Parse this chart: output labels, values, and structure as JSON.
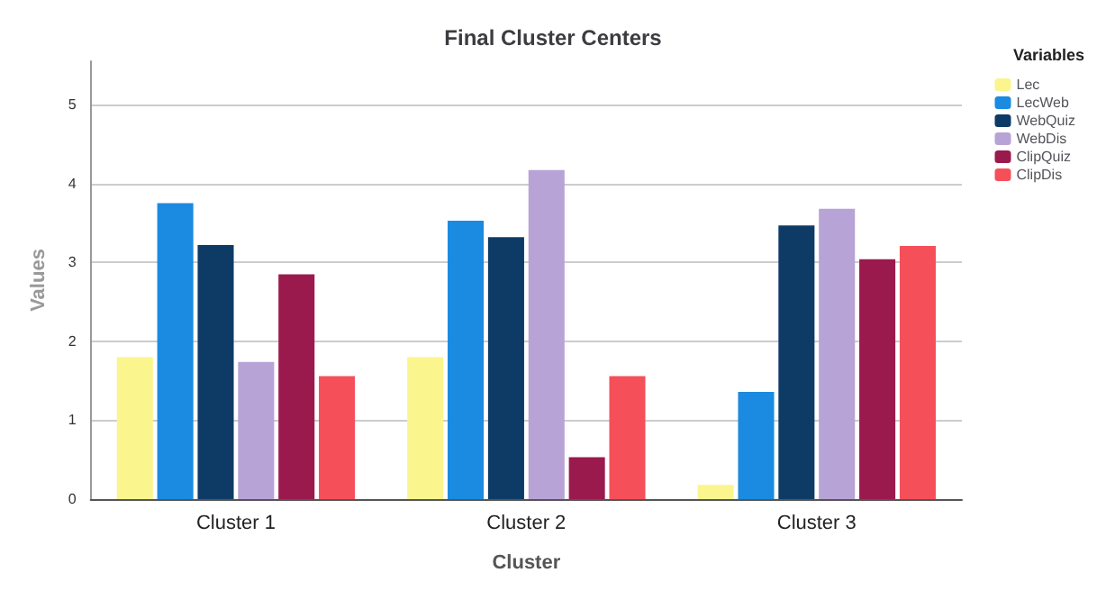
{
  "chart_data": {
    "type": "bar",
    "title": "Final Cluster Centers",
    "xlabel": "Cluster",
    "ylabel": "Values",
    "legend_title": "Variables",
    "categories": [
      "Cluster 1",
      "Cluster 2",
      "Cluster 3"
    ],
    "series": [
      {
        "name": "Lec",
        "color": "#fbf58e",
        "values": [
          1.8,
          1.8,
          0.18
        ]
      },
      {
        "name": "LecWeb",
        "color": "#1a8be0",
        "values": [
          3.75,
          3.53,
          1.36
        ]
      },
      {
        "name": "WebQuiz",
        "color": "#0d3b66",
        "values": [
          3.22,
          3.32,
          3.47
        ]
      },
      {
        "name": "WebDis",
        "color": "#b8a3d6",
        "values": [
          1.74,
          4.17,
          3.68
        ]
      },
      {
        "name": "ClipQuiz",
        "color": "#9b1a4e",
        "values": [
          2.85,
          0.53,
          3.04
        ]
      },
      {
        "name": "ClipDis",
        "color": "#f5505a",
        "values": [
          1.56,
          1.56,
          3.21
        ]
      }
    ],
    "ylim": [
      0,
      5.55
    ],
    "yticks": [
      0,
      1,
      2,
      3,
      4,
      5
    ],
    "grid": "y",
    "legend": "top right"
  }
}
